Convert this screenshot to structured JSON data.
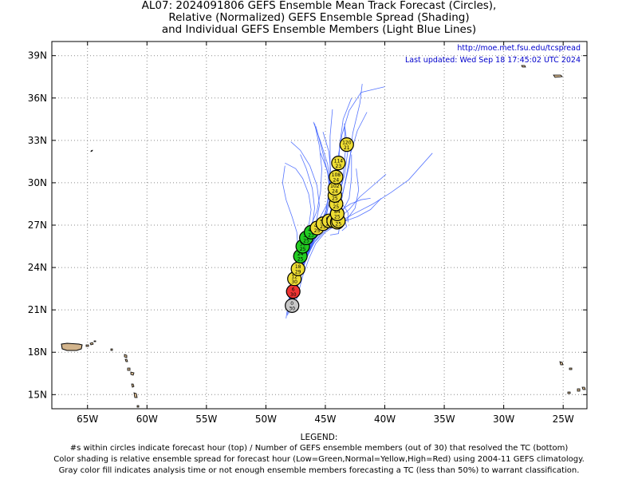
{
  "title": {
    "line1": "AL07: 2024091806 GEFS Ensemble Mean Track Forecast (Circles),",
    "line2": "Relative (Normalized) GEFS Ensemble Spread (Shading)",
    "line3": "and Individual GEFS Ensemble Members (Light Blue Lines)"
  },
  "map_info": {
    "url": "http://moe.met.fsu.edu/tcspread",
    "updated": "Last updated: Wed Sep 18 17:45:02 UTC 2024"
  },
  "axes": {
    "lon_range": [
      -68,
      -23
    ],
    "lat_range": [
      14,
      40
    ],
    "x_ticks": [
      {
        "lon": -65,
        "label": "65W"
      },
      {
        "lon": -60,
        "label": "60W"
      },
      {
        "lon": -55,
        "label": "55W"
      },
      {
        "lon": -50,
        "label": "50W"
      },
      {
        "lon": -45,
        "label": "45W"
      },
      {
        "lon": -40,
        "label": "40W"
      },
      {
        "lon": -35,
        "label": "35W"
      },
      {
        "lon": -30,
        "label": "30W"
      },
      {
        "lon": -25,
        "label": "25W"
      }
    ],
    "y_ticks": [
      {
        "lat": 15,
        "label": "15N"
      },
      {
        "lat": 18,
        "label": "18N"
      },
      {
        "lat": 21,
        "label": "21N"
      },
      {
        "lat": 24,
        "label": "24N"
      },
      {
        "lat": 27,
        "label": "27N"
      },
      {
        "lat": 30,
        "label": "30N"
      },
      {
        "lat": 33,
        "label": "33N"
      },
      {
        "lat": 36,
        "label": "36N"
      },
      {
        "lat": 39,
        "label": "39N"
      }
    ],
    "grid": "dotted"
  },
  "colors": {
    "low_spread": "#22cc22",
    "normal_spread": "#eedd33",
    "high_spread": "#ee3333",
    "gray_fill": "#c8c8c8",
    "member_track": "#4466ff",
    "land": "#d2b48c",
    "url_text": "#0000cc"
  },
  "mean_track": [
    {
      "hour": "0",
      "members": "30",
      "lon": -47.8,
      "lat": 21.3,
      "spread": "gray"
    },
    {
      "hour": "6",
      "members": "30",
      "lon": -47.7,
      "lat": 22.3,
      "spread": "high"
    },
    {
      "hour": "12",
      "members": "30",
      "lon": -47.6,
      "lat": 23.2,
      "spread": "normal"
    },
    {
      "hour": "18",
      "members": "29",
      "lon": -47.3,
      "lat": 23.9,
      "spread": "normal"
    },
    {
      "hour": "24",
      "members": "25",
      "lon": -47.1,
      "lat": 24.8,
      "spread": "low"
    },
    {
      "hour": "30",
      "members": "25",
      "lon": -46.9,
      "lat": 25.5,
      "spread": "low"
    },
    {
      "hour": "36",
      "members": "25",
      "lon": -46.6,
      "lat": 26.1,
      "spread": "low"
    },
    {
      "hour": "42",
      "members": "23",
      "lon": -46.2,
      "lat": 26.5,
      "spread": "low"
    },
    {
      "hour": "48",
      "members": "25",
      "lon": -45.7,
      "lat": 26.8,
      "spread": "normal"
    },
    {
      "hour": "54",
      "members": "25",
      "lon": -45.2,
      "lat": 27.1,
      "spread": "normal"
    },
    {
      "hour": "60",
      "members": "25",
      "lon": -44.7,
      "lat": 27.3,
      "spread": "normal"
    },
    {
      "hour": "66",
      "members": "25",
      "lon": -44.3,
      "lat": 27.3,
      "spread": "normal"
    },
    {
      "hour": "72",
      "members": "25",
      "lon": -44.0,
      "lat": 27.2,
      "spread": "normal"
    },
    {
      "hour": "78",
      "members": "25",
      "lon": -43.9,
      "lat": 27.3,
      "spread": "normal"
    },
    {
      "hour": "84",
      "members": "25",
      "lon": -44.0,
      "lat": 27.8,
      "spread": "normal"
    },
    {
      "hour": "90",
      "members": "25",
      "lon": -44.1,
      "lat": 28.5,
      "spread": "normal"
    },
    {
      "hour": "96",
      "members": "25",
      "lon": -44.2,
      "lat": 29.1,
      "spread": "normal"
    },
    {
      "hour": "102",
      "members": "24",
      "lon": -44.2,
      "lat": 29.6,
      "spread": "normal"
    },
    {
      "hour": "108",
      "members": "24",
      "lon": -44.1,
      "lat": 30.4,
      "spread": "normal"
    },
    {
      "hour": "114",
      "members": "23",
      "lon": -43.9,
      "lat": 31.4,
      "spread": "normal"
    },
    {
      "hour": "120",
      "members": "21",
      "lon": -43.2,
      "lat": 32.7,
      "spread": "normal"
    }
  ],
  "member_tracks": [
    [
      [
        -48.2,
        20.6
      ],
      [
        -48.0,
        21.8
      ],
      [
        -47.6,
        23.0
      ],
      [
        -47.1,
        24.4
      ],
      [
        -46.5,
        25.6
      ],
      [
        -45.7,
        26.7
      ],
      [
        -45.0,
        27.6
      ],
      [
        -44.6,
        28.8
      ],
      [
        -44.5,
        30.4
      ],
      [
        -44.7,
        32.2
      ],
      [
        -45.2,
        33.6
      ]
    ],
    [
      [
        -48.1,
        20.9
      ],
      [
        -47.8,
        22.0
      ],
      [
        -47.4,
        23.3
      ],
      [
        -46.9,
        24.6
      ],
      [
        -46.2,
        25.8
      ],
      [
        -45.3,
        26.9
      ],
      [
        -44.5,
        27.8
      ],
      [
        -43.9,
        29.0
      ],
      [
        -43.4,
        30.5
      ],
      [
        -43.1,
        32.3
      ],
      [
        -43.4,
        34.2
      ]
    ],
    [
      [
        -47.9,
        20.8
      ],
      [
        -47.6,
        22.1
      ],
      [
        -47.2,
        23.4
      ],
      [
        -46.7,
        24.7
      ],
      [
        -46.0,
        25.9
      ],
      [
        -45.1,
        26.8
      ],
      [
        -44.0,
        27.4
      ],
      [
        -43.0,
        28.1
      ],
      [
        -42.1,
        29.0
      ],
      [
        -41.0,
        29.8
      ],
      [
        -39.9,
        30.6
      ]
    ],
    [
      [
        -48.3,
        20.4
      ],
      [
        -48.1,
        21.6
      ],
      [
        -47.8,
        22.9
      ],
      [
        -47.5,
        24.1
      ],
      [
        -47.3,
        25.3
      ],
      [
        -47.4,
        26.5
      ],
      [
        -47.8,
        27.6
      ],
      [
        -48.3,
        28.8
      ],
      [
        -48.6,
        30.0
      ],
      [
        -48.4,
        31.2
      ]
    ],
    [
      [
        -48.0,
        21.0
      ],
      [
        -47.7,
        22.2
      ],
      [
        -47.3,
        23.5
      ],
      [
        -46.8,
        24.8
      ],
      [
        -46.2,
        25.9
      ],
      [
        -45.5,
        26.8
      ],
      [
        -44.9,
        27.7
      ],
      [
        -44.6,
        29.0
      ],
      [
        -44.8,
        30.7
      ],
      [
        -45.3,
        32.4
      ],
      [
        -45.8,
        34.0
      ]
    ],
    [
      [
        -47.7,
        20.9
      ],
      [
        -47.3,
        22.1
      ],
      [
        -46.9,
        23.4
      ],
      [
        -46.4,
        24.6
      ],
      [
        -45.8,
        25.7
      ],
      [
        -45.0,
        26.5
      ],
      [
        -44.1,
        27.0
      ],
      [
        -43.2,
        27.4
      ],
      [
        -42.5,
        28.2
      ],
      [
        -42.2,
        29.5
      ],
      [
        -42.4,
        31.0
      ]
    ],
    [
      [
        -48.2,
        21.1
      ],
      [
        -47.9,
        22.4
      ],
      [
        -47.5,
        23.6
      ],
      [
        -47.1,
        24.9
      ],
      [
        -46.6,
        26.0
      ],
      [
        -46.1,
        27.0
      ],
      [
        -45.9,
        28.2
      ],
      [
        -46.1,
        29.6
      ],
      [
        -46.6,
        31.0
      ],
      [
        -47.1,
        32.0
      ]
    ],
    [
      [
        -47.9,
        21.2
      ],
      [
        -47.5,
        22.5
      ],
      [
        -47.1,
        23.8
      ],
      [
        -46.6,
        25.0
      ],
      [
        -46.0,
        26.0
      ],
      [
        -45.2,
        26.8
      ],
      [
        -44.4,
        27.3
      ],
      [
        -43.6,
        27.9
      ],
      [
        -43.0,
        28.9
      ],
      [
        -42.8,
        30.4
      ],
      [
        -42.8,
        32.0
      ]
    ],
    [
      [
        -48.0,
        21.3
      ],
      [
        -47.7,
        22.5
      ],
      [
        -47.4,
        23.7
      ],
      [
        -47.0,
        24.9
      ],
      [
        -46.5,
        26.0
      ],
      [
        -45.8,
        26.9
      ],
      [
        -45.1,
        27.5
      ],
      [
        -44.3,
        27.4
      ],
      [
        -43.8,
        26.9
      ],
      [
        -43.9,
        26.4
      ],
      [
        -44.6,
        26.3
      ]
    ],
    [
      [
        -47.8,
        21.0
      ],
      [
        -47.5,
        22.2
      ],
      [
        -47.1,
        23.5
      ],
      [
        -46.6,
        24.7
      ],
      [
        -45.9,
        25.8
      ],
      [
        -45.0,
        26.6
      ],
      [
        -43.9,
        27.2
      ],
      [
        -42.6,
        27.8
      ],
      [
        -41.0,
        28.5
      ],
      [
        -39.5,
        29.3
      ],
      [
        -38.0,
        30.2
      ],
      [
        -36.0,
        32.1
      ]
    ],
    [
      [
        -48.1,
        21.2
      ],
      [
        -47.8,
        22.4
      ],
      [
        -47.4,
        23.7
      ],
      [
        -46.9,
        25.0
      ],
      [
        -46.3,
        26.2
      ],
      [
        -45.6,
        27.3
      ],
      [
        -44.9,
        28.4
      ],
      [
        -44.4,
        29.8
      ],
      [
        -44.0,
        31.5
      ],
      [
        -43.6,
        33.4
      ],
      [
        -43.0,
        35.1
      ],
      [
        -42.0,
        36.4
      ],
      [
        -40.0,
        36.8
      ]
    ],
    [
      [
        -48.0,
        21.0
      ],
      [
        -47.6,
        22.3
      ],
      [
        -47.2,
        23.5
      ],
      [
        -46.7,
        24.8
      ],
      [
        -46.1,
        25.9
      ],
      [
        -45.3,
        26.9
      ],
      [
        -44.6,
        27.8
      ],
      [
        -44.1,
        29.0
      ],
      [
        -43.9,
        30.7
      ],
      [
        -43.8,
        32.6
      ],
      [
        -43.5,
        34.5
      ],
      [
        -42.8,
        36.0
      ]
    ],
    [
      [
        -47.9,
        21.1
      ],
      [
        -47.6,
        22.3
      ],
      [
        -47.2,
        23.6
      ],
      [
        -46.8,
        24.9
      ],
      [
        -46.3,
        26.1
      ],
      [
        -45.8,
        27.1
      ],
      [
        -45.5,
        28.4
      ],
      [
        -45.7,
        29.8
      ],
      [
        -46.3,
        31.2
      ],
      [
        -47.1,
        32.3
      ],
      [
        -47.9,
        32.9
      ]
    ],
    [
      [
        -48.1,
        20.7
      ],
      [
        -47.8,
        22.0
      ],
      [
        -47.4,
        23.3
      ],
      [
        -46.9,
        24.6
      ],
      [
        -46.2,
        25.8
      ],
      [
        -45.4,
        26.8
      ],
      [
        -44.6,
        27.6
      ],
      [
        -44.0,
        28.3
      ],
      [
        -43.5,
        28.4
      ],
      [
        -43.1,
        27.9
      ],
      [
        -43.1,
        27.2
      ]
    ],
    [
      [
        -47.8,
        21.2
      ],
      [
        -47.4,
        22.4
      ],
      [
        -47.0,
        23.7
      ],
      [
        -46.5,
        24.9
      ],
      [
        -45.9,
        26.0
      ],
      [
        -45.2,
        26.9
      ],
      [
        -44.5,
        27.7
      ],
      [
        -43.9,
        28.9
      ],
      [
        -43.5,
        30.5
      ],
      [
        -43.3,
        32.4
      ],
      [
        -43.4,
        34.0
      ]
    ],
    [
      [
        -48.2,
        21.0
      ],
      [
        -47.9,
        22.3
      ],
      [
        -47.6,
        23.5
      ],
      [
        -47.2,
        24.7
      ],
      [
        -46.8,
        25.8
      ],
      [
        -46.4,
        26.9
      ],
      [
        -46.2,
        28.1
      ],
      [
        -46.4,
        29.2
      ],
      [
        -46.9,
        30.3
      ],
      [
        -47.5,
        31.0
      ],
      [
        -48.4,
        31.4
      ]
    ],
    [
      [
        -47.9,
        21.3
      ],
      [
        -47.5,
        22.6
      ],
      [
        -47.0,
        23.9
      ],
      [
        -46.5,
        25.1
      ],
      [
        -45.8,
        26.2
      ],
      [
        -45.0,
        27.2
      ],
      [
        -44.2,
        28.1
      ],
      [
        -43.5,
        29.4
      ],
      [
        -43.0,
        31.2
      ],
      [
        -42.7,
        33.5
      ],
      [
        -42.1,
        35.6
      ],
      [
        -41.9,
        37.0
      ]
    ],
    [
      [
        -48.0,
        21.1
      ],
      [
        -47.7,
        22.4
      ],
      [
        -47.3,
        23.6
      ],
      [
        -46.8,
        24.8
      ],
      [
        -46.2,
        25.9
      ],
      [
        -45.5,
        26.8
      ],
      [
        -44.7,
        27.5
      ],
      [
        -43.8,
        28.0
      ],
      [
        -42.9,
        28.5
      ],
      [
        -42.0,
        28.8
      ],
      [
        -41.2,
        28.9
      ]
    ],
    [
      [
        -47.8,
        20.9
      ],
      [
        -47.5,
        22.2
      ],
      [
        -47.1,
        23.4
      ],
      [
        -46.6,
        24.6
      ],
      [
        -46.0,
        25.7
      ],
      [
        -45.2,
        26.6
      ],
      [
        -44.4,
        27.3
      ],
      [
        -43.7,
        28.5
      ],
      [
        -43.3,
        30.2
      ],
      [
        -42.9,
        32.0
      ],
      [
        -42.3,
        33.7
      ],
      [
        -41.5,
        35.0
      ]
    ],
    [
      [
        -48.1,
        21.3
      ],
      [
        -47.8,
        22.5
      ],
      [
        -47.5,
        23.7
      ],
      [
        -47.1,
        24.9
      ],
      [
        -46.7,
        26.0
      ],
      [
        -46.2,
        27.0
      ],
      [
        -45.7,
        28.0
      ],
      [
        -45.4,
        29.4
      ],
      [
        -45.3,
        31.0
      ],
      [
        -45.5,
        32.6
      ],
      [
        -45.9,
        34.2
      ]
    ],
    [
      [
        -47.9,
        21.0
      ],
      [
        -47.5,
        22.3
      ],
      [
        -47.1,
        23.6
      ],
      [
        -46.6,
        24.8
      ],
      [
        -46.0,
        25.9
      ],
      [
        -45.2,
        26.7
      ],
      [
        -44.3,
        27.1
      ],
      [
        -43.3,
        27.3
      ],
      [
        -42.3,
        27.6
      ],
      [
        -41.2,
        28.1
      ],
      [
        -40.3,
        28.9
      ]
    ],
    [
      [
        -48.0,
        21.2
      ],
      [
        -47.7,
        22.4
      ],
      [
        -47.3,
        23.7
      ],
      [
        -46.8,
        24.9
      ],
      [
        -46.2,
        26.0
      ],
      [
        -45.5,
        27.0
      ],
      [
        -44.9,
        28.1
      ],
      [
        -44.6,
        29.6
      ],
      [
        -44.8,
        31.3
      ],
      [
        -45.4,
        32.9
      ],
      [
        -46.0,
        34.3
      ]
    ],
    [
      [
        -47.8,
        21.1
      ],
      [
        -47.5,
        22.3
      ],
      [
        -47.1,
        23.5
      ],
      [
        -46.6,
        24.7
      ],
      [
        -46.0,
        25.8
      ],
      [
        -45.3,
        26.8
      ],
      [
        -44.7,
        27.6
      ],
      [
        -44.4,
        28.5
      ],
      [
        -44.5,
        29.7
      ],
      [
        -44.9,
        31.0
      ],
      [
        -45.4,
        32.1
      ]
    ],
    [
      [
        -48.1,
        20.8
      ],
      [
        -47.8,
        22.1
      ],
      [
        -47.4,
        23.4
      ],
      [
        -46.9,
        24.7
      ],
      [
        -46.3,
        25.9
      ],
      [
        -45.6,
        26.9
      ],
      [
        -45.0,
        27.8
      ],
      [
        -44.7,
        29.3
      ],
      [
        -44.6,
        31.2
      ],
      [
        -44.6,
        33.3
      ],
      [
        -44.4,
        35.2
      ]
    ],
    [
      [
        -47.9,
        21.2
      ],
      [
        -47.6,
        22.5
      ],
      [
        -47.2,
        23.7
      ],
      [
        -46.7,
        24.9
      ],
      [
        -46.1,
        26.0
      ],
      [
        -45.4,
        26.9
      ],
      [
        -44.6,
        27.5
      ],
      [
        -43.9,
        27.7
      ],
      [
        -43.4,
        27.4
      ],
      [
        -43.2,
        26.9
      ],
      [
        -43.6,
        26.6
      ]
    ]
  ],
  "legend": {
    "title": "LEGEND:",
    "line1": "#s within circles indicate forecast hour (top) / Number of GEFS ensemble members (out of 30) that resolved the TC (bottom)",
    "line2": "Color shading is relative ensemble spread for forecast hour (Low=Green,Normal=Yellow,High=Red) using 2004-11 GEFS climatology.",
    "line3": "Gray color fill indicates analysis time or not enough ensemble members forecasting a TC (less than 50%) to warrant classification."
  }
}
